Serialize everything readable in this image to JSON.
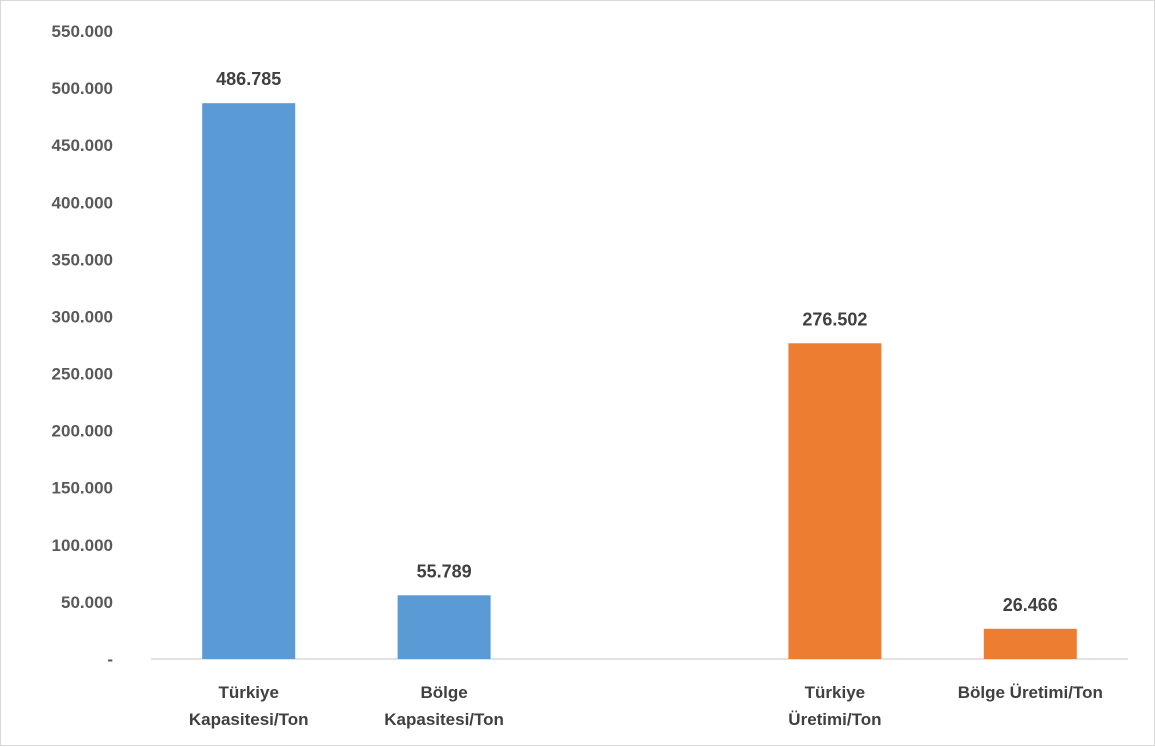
{
  "chart_data": {
    "type": "bar",
    "categories": [
      [
        "Türkiye",
        "Kapasitesi/Ton"
      ],
      [
        "Bölge",
        "Kapasitesi/Ton"
      ],
      [
        "",
        ""
      ],
      [
        "Türkiye",
        "Üretimi/Ton"
      ],
      [
        "Bölge Üretimi/Ton"
      ]
    ],
    "values": [
      486785,
      55789,
      null,
      276502,
      26466
    ],
    "data_labels": [
      "486.785",
      "55.789",
      "",
      "276.502",
      "26.466"
    ],
    "bar_colors": [
      "#5b9bd5",
      "#5b9bd5",
      null,
      "#ed7d31",
      "#ed7d31"
    ],
    "ylim": [
      0,
      550000
    ],
    "y_ticks": [
      0,
      50000,
      100000,
      150000,
      200000,
      250000,
      300000,
      350000,
      400000,
      450000,
      500000,
      550000
    ],
    "y_tick_labels": [
      "-",
      "50.000",
      "100.000",
      "150.000",
      "200.000",
      "250.000",
      "300.000",
      "350.000",
      "400.000",
      "450.000",
      "500.000",
      "550.000"
    ],
    "grid": false,
    "legend": "none"
  }
}
